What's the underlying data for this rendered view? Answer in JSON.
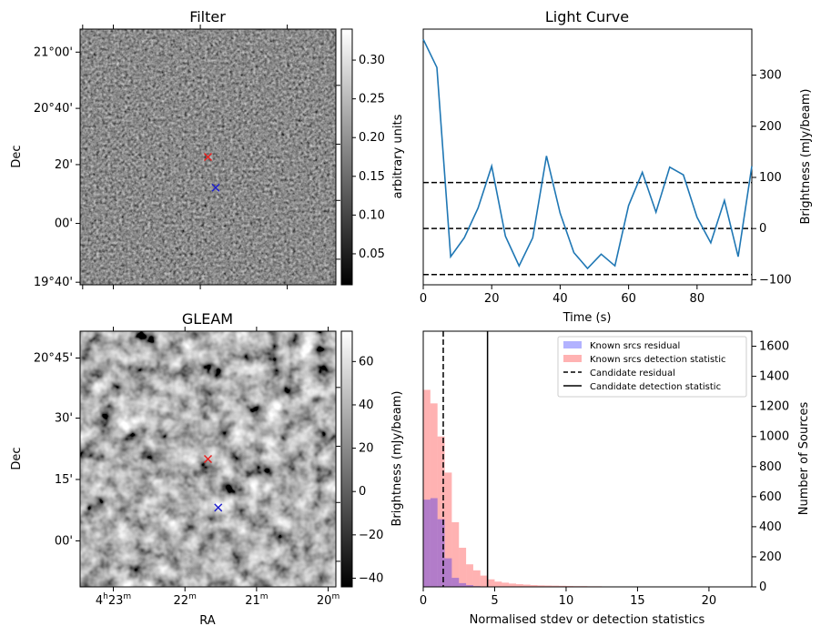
{
  "chart_data": [
    {
      "type": "heatmap",
      "title": "Filter",
      "xlabel": "",
      "ylabel": "Dec",
      "y_ticks": [
        "21°00'",
        "20°40'",
        "20'",
        "00'",
        "19°40'"
      ],
      "colorbar": {
        "label": "arbitrary units",
        "ticks": [
          "0.30",
          "0.25",
          "0.20",
          "0.15",
          "0.10",
          "0.05"
        ],
        "range": [
          0.01,
          0.34
        ]
      },
      "markers": [
        {
          "name": "red-cross",
          "color": "#e8201f",
          "rel": [
            0.5,
            0.5
          ]
        },
        {
          "name": "blue-cross",
          "color": "#1f1fcc",
          "rel": [
            0.53,
            0.62
          ]
        }
      ]
    },
    {
      "type": "line",
      "title": "Light Curve",
      "xlabel": "Time (s)",
      "ylabel": "Brightness (mJy/beam)",
      "xlim": [
        0,
        96
      ],
      "ylim": [
        -110,
        390
      ],
      "x_ticks": [
        0,
        20,
        40,
        60,
        80
      ],
      "y_ticks": [
        -100,
        0,
        100,
        200,
        300
      ],
      "hlines": [
        90,
        0,
        -90
      ],
      "color": "#1f77b4",
      "x": [
        0,
        4,
        8,
        12,
        16,
        20,
        24,
        28,
        32,
        36,
        40,
        44,
        48,
        52,
        56,
        60,
        64,
        68,
        72,
        76,
        80,
        84,
        88,
        92,
        96
      ],
      "y": [
        370,
        315,
        -55,
        -18,
        40,
        122,
        -15,
        -73,
        -18,
        142,
        30,
        -47,
        -78,
        -50,
        -73,
        45,
        110,
        32,
        120,
        105,
        22,
        -28,
        55,
        -55,
        122
      ]
    },
    {
      "type": "heatmap",
      "title": "GLEAM",
      "xlabel": "RA",
      "ylabel": "Dec",
      "x_ticks": [
        "4h23m",
        "22m",
        "21m",
        "20m"
      ],
      "x_ticks_parts": [
        [
          "4",
          "h",
          "23",
          "m"
        ],
        [
          "22",
          "",
          "",
          "m"
        ],
        [
          "21",
          "",
          "",
          "m"
        ],
        [
          "20",
          "",
          "",
          "m"
        ]
      ],
      "y_ticks": [
        "20°45'",
        "30'",
        "15'",
        "00'"
      ],
      "colorbar": {
        "label": "Brightness (mJy/beam)",
        "ticks": [
          "60",
          "40",
          "20",
          "0",
          "−20",
          "−40"
        ],
        "range": [
          -44,
          74
        ]
      },
      "markers": [
        {
          "name": "red-cross",
          "color": "#e8201f",
          "rel": [
            0.5,
            0.5
          ]
        },
        {
          "name": "blue-cross",
          "color": "#1f1fcc",
          "rel": [
            0.54,
            0.69
          ]
        }
      ]
    },
    {
      "type": "bar",
      "title": "",
      "xlabel": "Normalised stdev or detection statistics",
      "ylabel": "Number of Sources",
      "xlim": [
        0,
        23
      ],
      "ylim": [
        0,
        1700
      ],
      "x_ticks": [
        0,
        5,
        10,
        15,
        20
      ],
      "y_ticks": [
        0,
        200,
        400,
        600,
        800,
        1000,
        1200,
        1400,
        1600
      ],
      "bin_width": 0.5,
      "series": [
        {
          "name": "Known srcs residual",
          "color": "#0000ff",
          "alpha": 0.3,
          "values": [
            580,
            590,
            450,
            190,
            60,
            25,
            12,
            5,
            2,
            1
          ]
        },
        {
          "name": "Known srcs detection statistic",
          "color": "#ff0000",
          "alpha": 0.3,
          "values": [
            1310,
            1220,
            1000,
            760,
            430,
            260,
            150,
            110,
            75,
            50,
            35,
            28,
            22,
            18,
            15,
            12,
            10,
            9,
            8,
            7,
            6,
            5,
            5,
            4,
            4,
            3,
            3,
            3,
            2,
            2,
            2,
            2,
            2,
            1,
            1,
            1,
            1,
            1,
            1,
            1,
            1,
            1,
            1,
            1,
            0,
            1
          ]
        }
      ],
      "vlines": [
        {
          "name": "Candidate residual",
          "x": 1.4,
          "style": "dashed"
        },
        {
          "name": "Candidate detection statistic",
          "x": 4.5,
          "style": "solid"
        }
      ],
      "legend": "top-right"
    }
  ]
}
